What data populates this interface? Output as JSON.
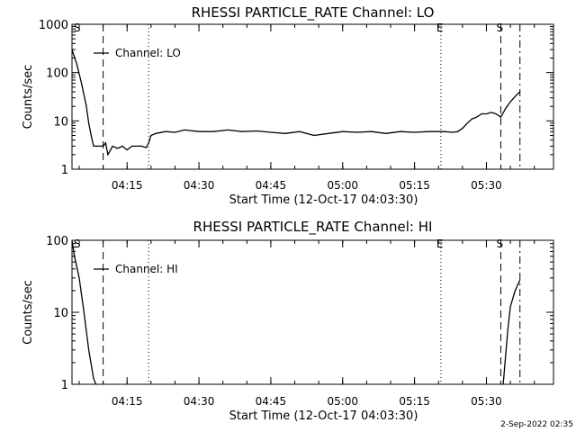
{
  "chart_data": [
    {
      "type": "line",
      "title": "RHESSI PARTICLE_RATE Channel: LO",
      "xlabel": "Start Time (12-Oct-17 04:03:30)",
      "ylabel": "Counts/sec",
      "y_scale": "log",
      "ylim": [
        1,
        1000
      ],
      "xlim": [
        "04:03:30",
        "05:44:00"
      ],
      "x_ticks": [
        "04:15",
        "04:30",
        "04:45",
        "05:00",
        "05:15",
        "05:30"
      ],
      "y_ticks": [
        "1",
        "10",
        "100",
        "1000"
      ],
      "legend": {
        "placement": "top-left",
        "entries": [
          "Channel: LO"
        ]
      },
      "markers": [
        {
          "label": "E",
          "time": "05:20:30",
          "style": "dotted"
        },
        {
          "label": "S",
          "time": "05:33:00",
          "style": "dashed"
        },
        {
          "label": "S",
          "time": "04:03:30",
          "style": "none"
        },
        {
          "label": "",
          "time": "04:10:00",
          "style": "dashed"
        },
        {
          "label": "",
          "time": "04:19:30",
          "style": "dotted"
        },
        {
          "label": "",
          "time": "05:37:00",
          "style": "dashdot"
        }
      ],
      "series": [
        {
          "name": "Channel: LO",
          "x": [
            "04:03:30",
            "04:04:30",
            "04:05:30",
            "04:06:30",
            "04:07:00",
            "04:07:30",
            "04:08:00",
            "04:09:00",
            "04:10:00",
            "04:10:30",
            "04:11:00",
            "04:12:00",
            "04:13:00",
            "04:14:00",
            "04:15:00",
            "04:16:00",
            "04:17:00",
            "04:18:00",
            "04:19:00",
            "04:19:30",
            "04:20:00",
            "04:21:00",
            "04:23:00",
            "04:25:00",
            "04:27:00",
            "04:30:00",
            "04:33:00",
            "04:36:00",
            "04:39:00",
            "04:42:00",
            "04:45:00",
            "04:48:00",
            "04:51:00",
            "04:54:00",
            "04:57:00",
            "05:00:00",
            "05:03:00",
            "05:06:00",
            "05:09:00",
            "05:12:00",
            "05:15:00",
            "05:18:00",
            "05:21:00",
            "05:23:00",
            "05:24:00",
            "05:25:00",
            "05:26:00",
            "05:27:00",
            "05:28:00",
            "05:29:00",
            "05:30:00",
            "05:31:00",
            "05:32:00",
            "05:33:00",
            "05:34:00",
            "05:35:00",
            "05:36:00",
            "05:37:00"
          ],
          "values": [
            300,
            150,
            60,
            20,
            9,
            5,
            3,
            3,
            3,
            3.5,
            2,
            3,
            2.7,
            3,
            2.5,
            3,
            3,
            3,
            2.8,
            3.5,
            5,
            5.5,
            6,
            5.8,
            6.5,
            6,
            6,
            6.5,
            6,
            6.2,
            5.8,
            5.5,
            6,
            5,
            5.5,
            6,
            5.8,
            6,
            5.5,
            6,
            5.8,
            6,
            6,
            5.8,
            6,
            7,
            9,
            11,
            12,
            14,
            14,
            15,
            14,
            12,
            18,
            25,
            32,
            40
          ]
        }
      ]
    },
    {
      "type": "line",
      "title": "RHESSI PARTICLE_RATE Channel: HI",
      "xlabel": "Start Time (12-Oct-17 04:03:30)",
      "ylabel": "Counts/sec",
      "y_scale": "log",
      "ylim": [
        1,
        100
      ],
      "xlim": [
        "04:03:30",
        "05:44:00"
      ],
      "x_ticks": [
        "04:15",
        "04:30",
        "04:45",
        "05:00",
        "05:15",
        "05:30"
      ],
      "y_ticks": [
        "1",
        "10",
        "100"
      ],
      "legend": {
        "placement": "top-left",
        "entries": [
          "Channel: HI"
        ]
      },
      "markers": [
        {
          "label": "E",
          "time": "05:20:30",
          "style": "dotted"
        },
        {
          "label": "S",
          "time": "05:33:00",
          "style": "dashed"
        },
        {
          "label": "S",
          "time": "04:03:30",
          "style": "none"
        },
        {
          "label": "",
          "time": "04:10:00",
          "style": "dashed"
        },
        {
          "label": "",
          "time": "04:19:30",
          "style": "dotted"
        },
        {
          "label": "",
          "time": "05:37:00",
          "style": "dashdot"
        }
      ],
      "series": [
        {
          "name": "Channel: HI",
          "segments": [
            {
              "x": [
                "04:03:30",
                "04:04:00",
                "04:05:00",
                "04:06:00",
                "04:07:00",
                "04:08:00",
                "04:08:30"
              ],
              "values": [
                100,
                60,
                30,
                10,
                3,
                1.2,
                1
              ]
            },
            {
              "x": [
                "05:33:30",
                "05:34:30",
                "05:35:00",
                "05:36:00",
                "05:37:00"
              ],
              "values": [
                1,
                6,
                12,
                20,
                28
              ]
            }
          ]
        }
      ]
    }
  ],
  "footer": {
    "timestamp": "2-Sep-2022 02:35"
  }
}
